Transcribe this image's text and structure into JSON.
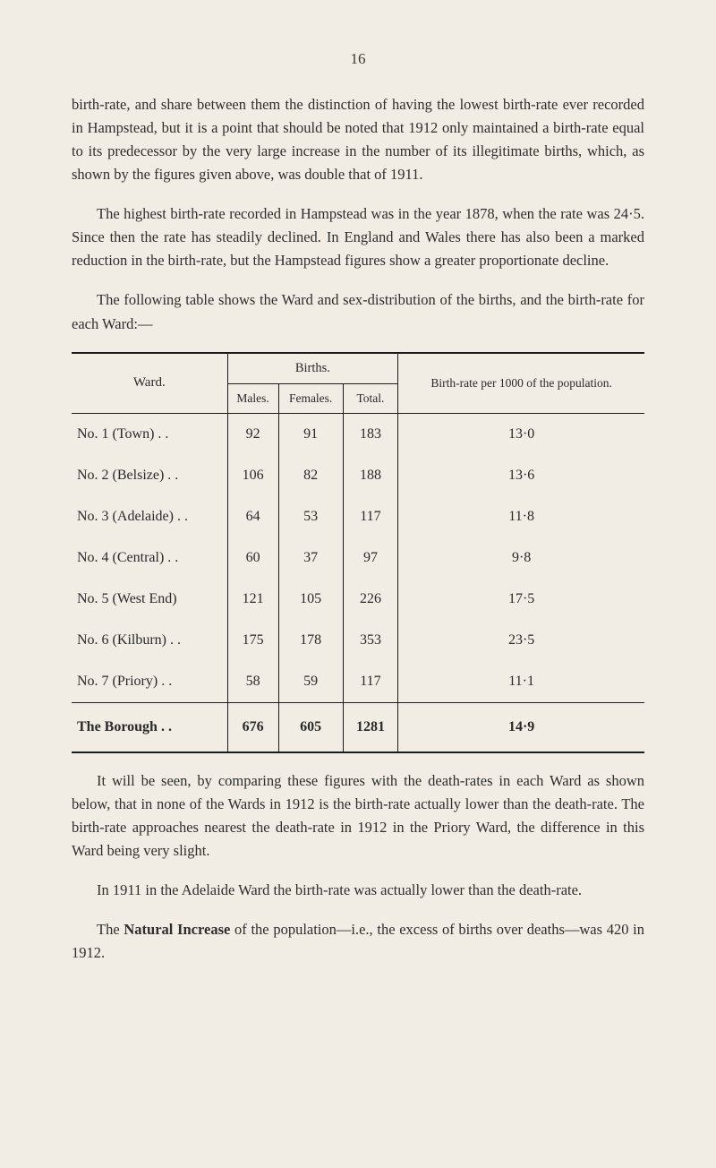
{
  "page_number": "16",
  "paragraphs": {
    "p1": "birth-rate, and share between them the distinction of having the lowest birth-rate ever recorded in Hampstead, but it is a point that should be noted that 1912 only maintained a birth-rate equal to its predecessor by the very large increase in the number of its illegitimate births, which, as shown by the figures given above, was double that of 1911.",
    "p2": "The highest birth-rate recorded in Hampstead was in the year 1878, when the rate was 24·5. Since then the rate has steadily declined. In England and Wales there has also been a marked reduction in the birth-rate, but the Hampstead figures show a greater proportionate decline.",
    "p3": "The following table shows the Ward and sex-distribution of the births, and the birth-rate for each Ward:—",
    "p4": "It will be seen, by comparing these figures with the death-rates in each Ward as shown below, that in none of the Wards in 1912 is the birth-rate actually lower than the death-rate. The birth-rate approaches nearest the death-rate in 1912 in the Priory Ward, the difference in this Ward being very slight.",
    "p5": "In 1911 in the Adelaide Ward the birth-rate was actually lower than the death-rate.",
    "p6_pre": "The ",
    "p6_bold": "Natural Increase",
    "p6_post": " of the population—i.e., the excess of births over deaths—was 420 in 1912."
  },
  "table": {
    "headers": {
      "ward": "Ward.",
      "births": "Births.",
      "males": "Males.",
      "females": "Females.",
      "total": "Total.",
      "rate": "Birth-rate per 1000 of the population."
    },
    "rows": [
      {
        "ward": "No. 1 (Town)   . .",
        "males": "92",
        "females": "91",
        "total": "183",
        "rate": "13·0"
      },
      {
        "ward": "No. 2 (Belsize)  . .",
        "males": "106",
        "females": "82",
        "total": "188",
        "rate": "13·6"
      },
      {
        "ward": "No. 3 (Adelaide) . .",
        "males": "64",
        "females": "53",
        "total": "117",
        "rate": "11·8"
      },
      {
        "ward": "No. 4 (Central)  . .",
        "males": "60",
        "females": "37",
        "total": "97",
        "rate": "9·8"
      },
      {
        "ward": "No. 5 (West End)",
        "males": "121",
        "females": "105",
        "total": "226",
        "rate": "17·5"
      },
      {
        "ward": "No. 6 (Kilburn) . .",
        "males": "175",
        "females": "178",
        "total": "353",
        "rate": "23·5"
      },
      {
        "ward": "No. 7 (Priory)  . .",
        "males": "58",
        "females": "59",
        "total": "117",
        "rate": "11·1"
      }
    ],
    "total_row": {
      "ward": "The Borough   . .",
      "males": "676",
      "females": "605",
      "total": "1281",
      "rate": "14·9"
    }
  }
}
